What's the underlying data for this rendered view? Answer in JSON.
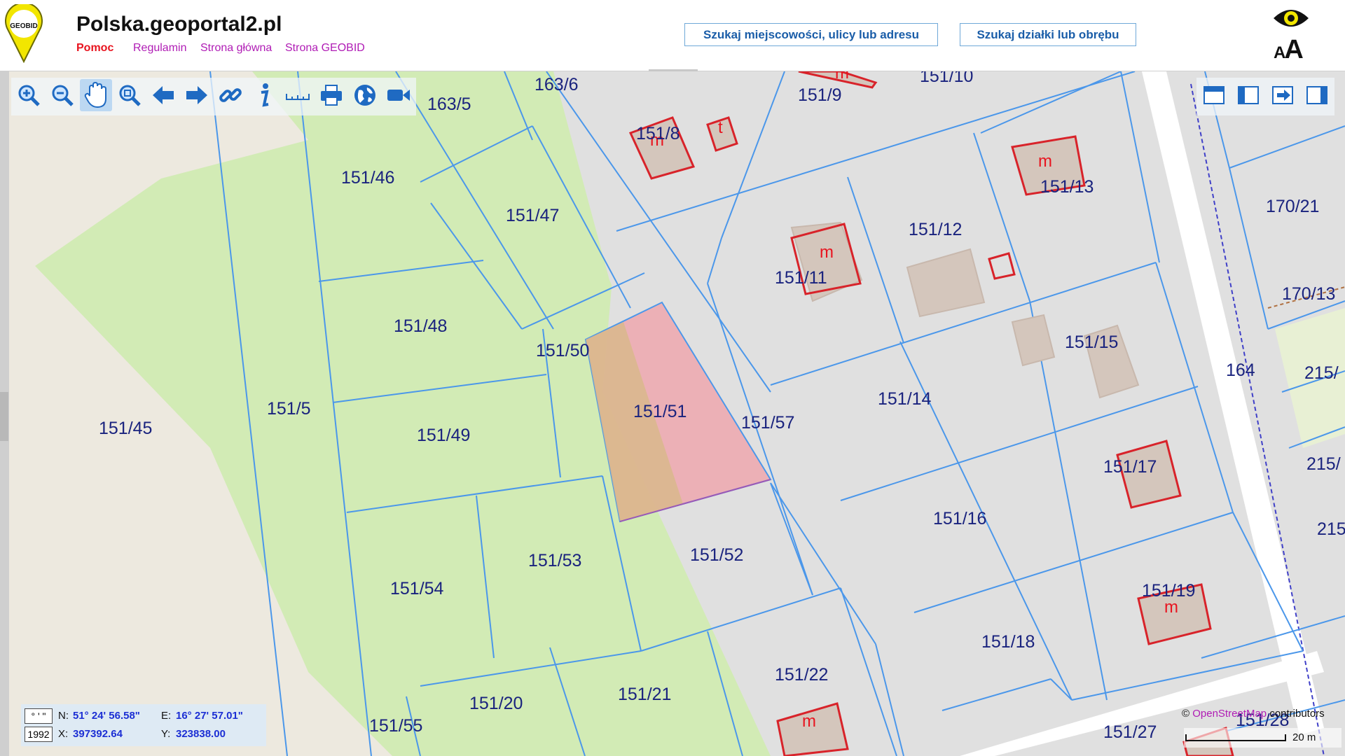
{
  "header": {
    "title": "Polska.geoportal2.pl",
    "logo_text": "GEOBID",
    "nav": {
      "help": "Pomoc",
      "terms": "Regulamin",
      "home": "Strona główna",
      "geobid": "Strona GEOBID"
    },
    "search_place_label": "Szukaj miejscowości, ulicy lub adresu",
    "search_parcel_label": "Szukaj działki lub obrębu",
    "font_size_small": "A",
    "font_size_large": "A"
  },
  "toolbar": {
    "tools": [
      "zoom-in",
      "zoom-out",
      "pan",
      "zoom-extent",
      "back",
      "forward",
      "link",
      "info",
      "measure",
      "print",
      "globe",
      "video"
    ],
    "active_tool": "pan",
    "panel_tools": [
      "panel-top",
      "panel-left",
      "panel-export",
      "panel-right"
    ]
  },
  "map": {
    "selected_parcel": "151/51",
    "parcels": [
      "163/6",
      "163/5",
      "151/46",
      "151/47",
      "151/48",
      "151/50",
      "151/51",
      "151/57",
      "151/45",
      "151/5",
      "151/49",
      "151/53",
      "151/52",
      "151/54",
      "151/20",
      "151/21",
      "151/55",
      "151/22",
      "151/8",
      "151/9",
      "151/10",
      "151/11",
      "151/12",
      "151/13",
      "151/14",
      "151/15",
      "151/16",
      "151/17",
      "151/18",
      "151/19",
      "151/27",
      "151/28",
      "170/21",
      "170/13",
      "164",
      "215/",
      "215/",
      "215"
    ],
    "building_label": "m",
    "building_label_t": "t",
    "colors": {
      "parcel_line": "#4b97ea",
      "building_outline": "#d8232a",
      "green": "#d2ebb5",
      "road": "#ffffff",
      "selection": "#f0a0a8",
      "selection_overlap": "#d8b98a"
    }
  },
  "coords": {
    "dms_label": "° ' \"",
    "sys_label": "1992",
    "n_label": "N:",
    "n_value": "51° 24' 56.58\"",
    "e_label": "E:",
    "e_value": "16° 27' 57.01\"",
    "x_label": "X:",
    "x_value": "397392.64",
    "y_label": "Y:",
    "y_value": "323838.00"
  },
  "attribution": {
    "prefix": "©",
    "osm": "OpenStreetMap",
    "suffix": "contributors"
  },
  "scale": {
    "label": "20 m"
  }
}
